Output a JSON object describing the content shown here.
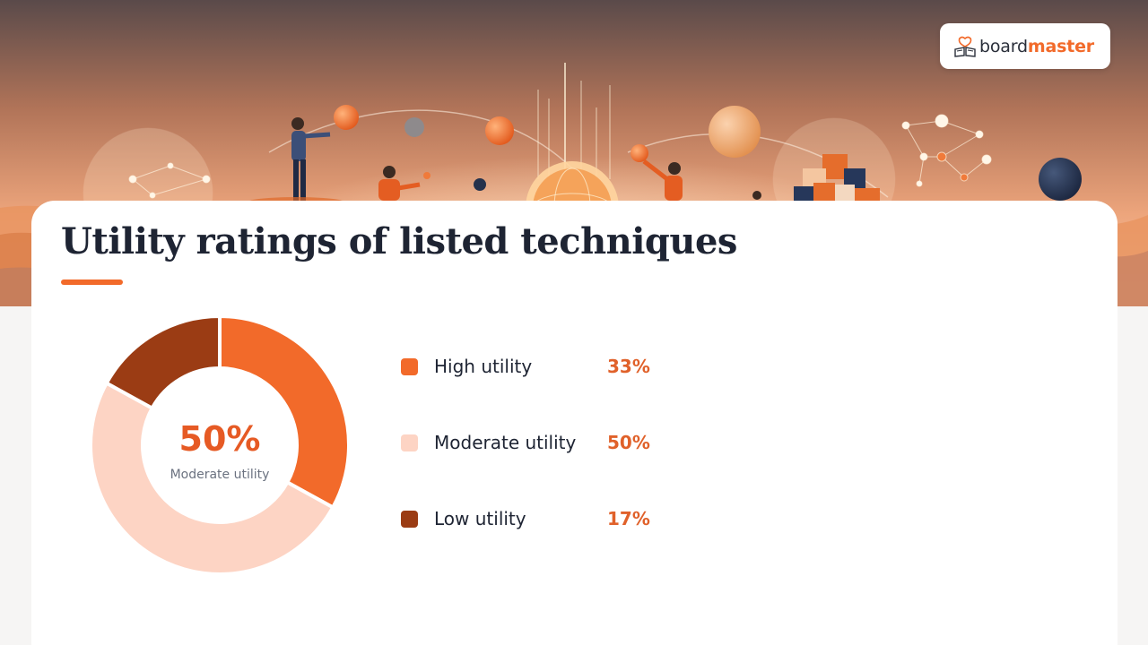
{
  "brand": {
    "name_part1": "board",
    "name_part2": "master"
  },
  "page": {
    "title": "Utility ratings of listed techniques"
  },
  "colors": {
    "accent": "#f26a2a",
    "title": "#1e2433",
    "high": "#f26a2a",
    "moderate": "#fdd4c4",
    "low": "#9b3c14"
  },
  "chart_data": {
    "type": "pie",
    "variant": "donut",
    "categories": [
      "High utility",
      "Moderate utility",
      "Low utility"
    ],
    "values": [
      33,
      50,
      17
    ],
    "value_labels": [
      "33%",
      "50%",
      "17%"
    ],
    "colors": [
      "#f26a2a",
      "#fdd4c4",
      "#9b3c14"
    ],
    "center": {
      "value": "50%",
      "label": "Moderate utility"
    },
    "legend_position": "right"
  }
}
